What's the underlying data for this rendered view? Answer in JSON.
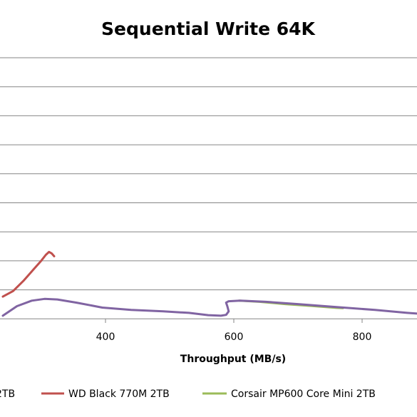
{
  "chart_data": {
    "type": "line",
    "title": "Sequential Write 64K",
    "xlabel": "Throughput  (MB/s)",
    "ylabel": "",
    "x_ticks": [
      400,
      600,
      800
    ],
    "xlim": [
      -10,
      850
    ],
    "ylim": [
      0,
      9
    ],
    "y_gridlines": 8,
    "grid": true,
    "legend_position": "bottom",
    "colors": {
      "wd": "#c0504d",
      "corsair": "#9bbb59",
      "purple": "#8064a2",
      "grid": "#868686"
    },
    "legend": [
      {
        "label": "2TB",
        "color": "#8064a2"
      },
      {
        "label": "WD Black 770M 2TB",
        "color": "#c0504d"
      },
      {
        "label": "Corsair MP600 Core Mini 2TB",
        "color": "#9bbb59"
      }
    ],
    "series": [
      {
        "name": "WD Black 770M 2TB",
        "color": "#c0504d",
        "points": [
          [
            240,
            0.76
          ],
          [
            256,
            0.95
          ],
          [
            272,
            1.3
          ],
          [
            288,
            1.7
          ],
          [
            300,
            2.0
          ],
          [
            307,
            2.2
          ],
          [
            312,
            2.3
          ],
          [
            316,
            2.25
          ],
          [
            320,
            2.15
          ]
        ]
      },
      {
        "name": "Corsair MP600 Core Mini 2TB",
        "color": "#9bbb59",
        "points": [
          [
            608,
            0.62
          ],
          [
            640,
            0.58
          ],
          [
            680,
            0.5
          ],
          [
            720,
            0.44
          ],
          [
            760,
            0.37
          ],
          [
            770,
            0.36
          ]
        ]
      },
      {
        "name": "2TB",
        "color": "#8064a2",
        "points": [
          [
            240,
            0.1
          ],
          [
            262,
            0.43
          ],
          [
            285,
            0.62
          ],
          [
            305,
            0.68
          ],
          [
            325,
            0.66
          ],
          [
            355,
            0.55
          ],
          [
            395,
            0.38
          ],
          [
            440,
            0.3
          ],
          [
            490,
            0.25
          ],
          [
            530,
            0.2
          ],
          [
            560,
            0.12
          ],
          [
            580,
            0.1
          ],
          [
            588,
            0.13
          ],
          [
            592,
            0.25
          ],
          [
            590,
            0.42
          ],
          [
            588,
            0.55
          ],
          [
            592,
            0.6
          ],
          [
            610,
            0.62
          ],
          [
            650,
            0.58
          ],
          [
            700,
            0.5
          ],
          [
            760,
            0.4
          ],
          [
            820,
            0.3
          ],
          [
            870,
            0.2
          ],
          [
            920,
            0.12
          ]
        ]
      }
    ]
  }
}
